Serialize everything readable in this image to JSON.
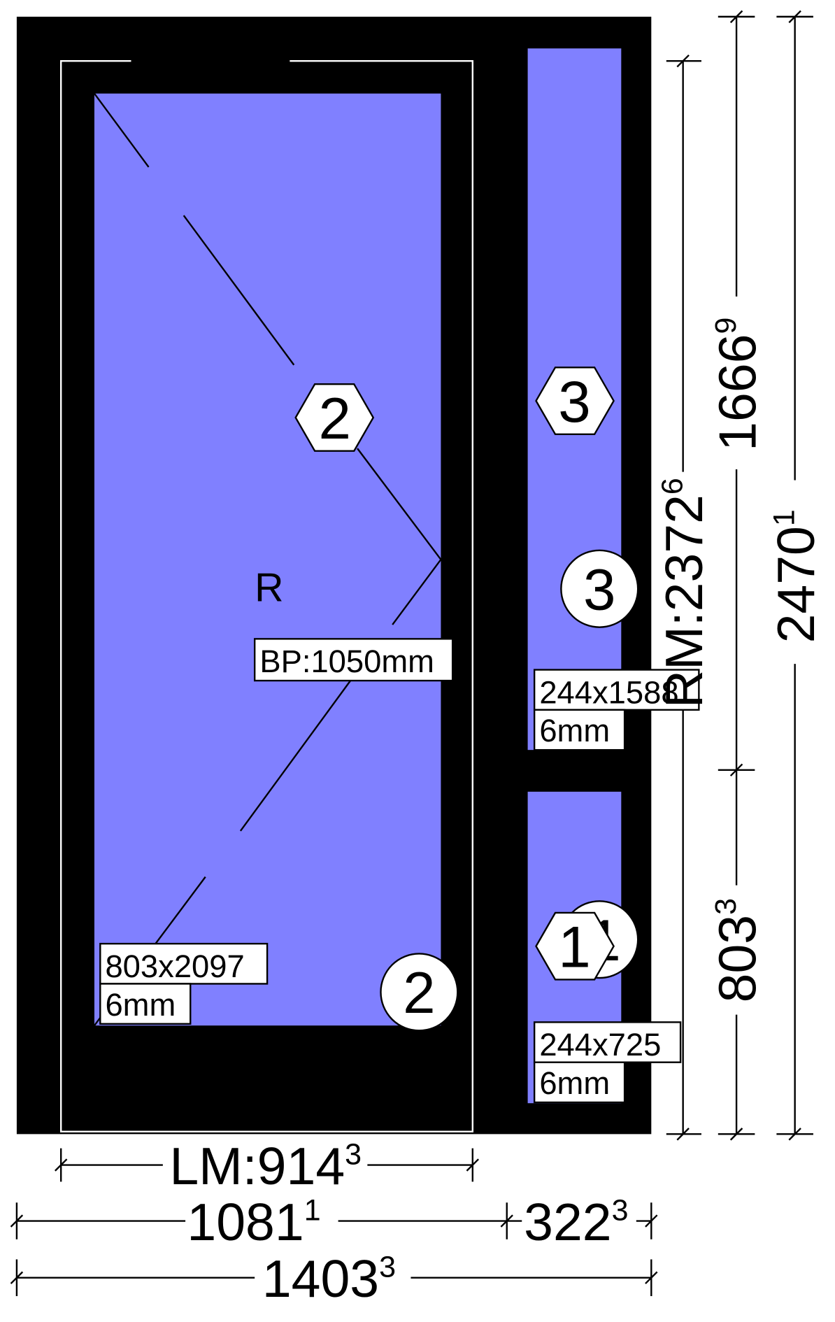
{
  "colors": {
    "frame": "#000000",
    "glass": "#8080ff",
    "background": "#ffffff",
    "label_bg": "#ffffff"
  },
  "sash": {
    "opening_label": "R",
    "handle_label": "BP:1050mm"
  },
  "panes": {
    "main": {
      "size": "803x2097",
      "thickness": "6mm",
      "marker_hex": "2",
      "marker_circle": "2"
    },
    "upper_side": {
      "size": "244x1588",
      "thickness": "6mm",
      "marker_hex": "3",
      "marker_circle": "3"
    },
    "lower_side": {
      "size": "244x725",
      "thickness": "6mm",
      "marker_hex": "1",
      "marker_circle": "1"
    }
  },
  "dimensions": {
    "lm_width": {
      "main": "LM:914",
      "sup": "3"
    },
    "left_width": {
      "main": "1081",
      "sup": "1"
    },
    "right_width": {
      "main": "322",
      "sup": "3"
    },
    "total_width": {
      "main": "1403",
      "sup": "3"
    },
    "upper_height": {
      "main": "1666",
      "sup": "9"
    },
    "lower_height": {
      "main": "803",
      "sup": "3"
    },
    "rm_height": {
      "main": "RM:2372",
      "sup": "6"
    },
    "total_height": {
      "main": "2470",
      "sup": "1"
    }
  }
}
